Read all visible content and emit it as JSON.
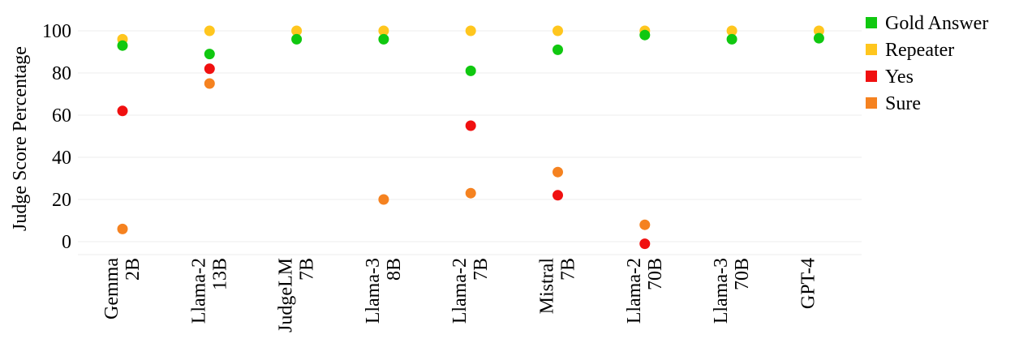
{
  "chart_data": {
    "type": "scatter",
    "ylabel": "Judge Score Percentage",
    "xlabel": "",
    "ylim": [
      0,
      100
    ],
    "yticks": [
      0,
      20,
      40,
      60,
      80,
      100
    ],
    "grid": true,
    "legend_position": "top-right",
    "categories": [
      [
        "Gemma",
        "2B"
      ],
      [
        "Llama-2",
        "13B"
      ],
      [
        "JudgeLM",
        "7B"
      ],
      [
        "Llama-3",
        "8B"
      ],
      [
        "Llama-2",
        "7B"
      ],
      [
        "Mistral",
        "7B"
      ],
      [
        "Llama-2",
        "70B"
      ],
      [
        "Llama-3",
        "70B"
      ],
      [
        "GPT-4",
        ""
      ]
    ],
    "series": [
      {
        "name": "Sure",
        "color": "#f58220",
        "values": [
          6,
          75,
          null,
          20,
          23,
          33,
          8,
          null,
          null
        ]
      },
      {
        "name": "Yes",
        "color": "#f01010",
        "values": [
          62,
          82,
          null,
          null,
          55,
          22,
          -1,
          null,
          null
        ]
      },
      {
        "name": "Repeater",
        "color": "#ffc61e",
        "values": [
          96,
          100,
          100,
          100,
          100,
          100,
          100,
          100,
          100
        ]
      },
      {
        "name": "Gold Answer",
        "color": "#10c810",
        "values": [
          93,
          89,
          96,
          96,
          81,
          91,
          98,
          96,
          96.5
        ]
      }
    ],
    "legend_order": [
      "Gold Answer",
      "Repeater",
      "Yes",
      "Sure"
    ]
  }
}
